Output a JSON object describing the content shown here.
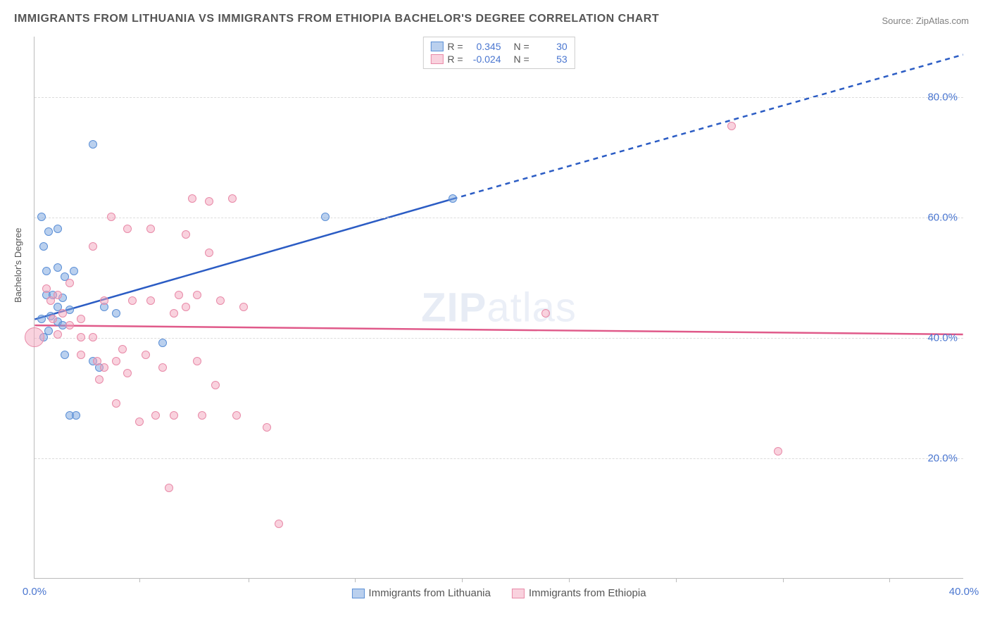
{
  "title": "IMMIGRANTS FROM LITHUANIA VS IMMIGRANTS FROM ETHIOPIA BACHELOR'S DEGREE CORRELATION CHART",
  "source": "Source: ZipAtlas.com",
  "ylabel": "Bachelor's Degree",
  "watermark_a": "ZIP",
  "watermark_b": "atlas",
  "chart": {
    "type": "scatter",
    "xlim": [
      0,
      40
    ],
    "ylim": [
      0,
      90
    ],
    "xticks": [
      {
        "v": 0,
        "label": "0.0%"
      },
      {
        "v": 40,
        "label": "40.0%"
      }
    ],
    "xmarks": [
      4.5,
      9.2,
      13.8,
      18.4,
      23.0,
      27.6,
      32.2,
      36.8
    ],
    "yticks": [
      {
        "v": 20,
        "label": "20.0%"
      },
      {
        "v": 40,
        "label": "40.0%"
      },
      {
        "v": 60,
        "label": "60.0%"
      },
      {
        "v": 80,
        "label": "80.0%"
      }
    ],
    "grid_color": "#dcdcdc",
    "background_color": "#ffffff",
    "series": [
      {
        "name": "Immigrants from Lithuania",
        "color_fill": "rgba(118,162,222,0.5)",
        "color_stroke": "#5b8fd6",
        "class": "blue",
        "R": "0.345",
        "N": "30",
        "trend": {
          "x1": 0,
          "y1": 43,
          "x2": 18,
          "y2": 63,
          "solid_to": 18,
          "x3": 40,
          "y3": 87,
          "stroke": "#2b5cc4",
          "width": 2.5
        },
        "points": [
          {
            "x": 0.3,
            "y": 60,
            "r": 6
          },
          {
            "x": 0.6,
            "y": 57.5,
            "r": 6
          },
          {
            "x": 1.0,
            "y": 58,
            "r": 6
          },
          {
            "x": 0.4,
            "y": 55,
            "r": 6
          },
          {
            "x": 0.5,
            "y": 51,
            "r": 6
          },
          {
            "x": 1.0,
            "y": 51.5,
            "r": 6
          },
          {
            "x": 1.3,
            "y": 50,
            "r": 6
          },
          {
            "x": 1.7,
            "y": 51,
            "r": 6
          },
          {
            "x": 0.5,
            "y": 47,
            "r": 6
          },
          {
            "x": 0.8,
            "y": 47,
            "r": 6
          },
          {
            "x": 1.0,
            "y": 45,
            "r": 6
          },
          {
            "x": 1.2,
            "y": 46.5,
            "r": 6
          },
          {
            "x": 1.5,
            "y": 44.5,
            "r": 6
          },
          {
            "x": 0.3,
            "y": 43,
            "r": 6
          },
          {
            "x": 0.7,
            "y": 43.5,
            "r": 6
          },
          {
            "x": 1.0,
            "y": 42.5,
            "r": 6
          },
          {
            "x": 1.2,
            "y": 42,
            "r": 6
          },
          {
            "x": 0.4,
            "y": 40,
            "r": 6
          },
          {
            "x": 0.6,
            "y": 41,
            "r": 6
          },
          {
            "x": 1.3,
            "y": 37,
            "r": 6
          },
          {
            "x": 2.5,
            "y": 36,
            "r": 6
          },
          {
            "x": 2.8,
            "y": 35,
            "r": 6
          },
          {
            "x": 1.5,
            "y": 27,
            "r": 6
          },
          {
            "x": 1.8,
            "y": 27,
            "r": 6
          },
          {
            "x": 2.5,
            "y": 72,
            "r": 6
          },
          {
            "x": 3.5,
            "y": 44,
            "r": 6
          },
          {
            "x": 5.5,
            "y": 39,
            "r": 6
          },
          {
            "x": 12.5,
            "y": 60,
            "r": 6
          },
          {
            "x": 18.0,
            "y": 63,
            "r": 6
          },
          {
            "x": 3.0,
            "y": 45,
            "r": 6
          }
        ]
      },
      {
        "name": "Immigrants from Ethiopia",
        "color_fill": "rgba(244,166,190,0.5)",
        "color_stroke": "#e88aa8",
        "class": "pink",
        "R": "-0.024",
        "N": "53",
        "trend": {
          "x1": 0,
          "y1": 42,
          "x2": 40,
          "y2": 40.5,
          "stroke": "#e05a8a",
          "width": 2.5
        },
        "points": [
          {
            "x": 0.0,
            "y": 40,
            "r": 14
          },
          {
            "x": 0.5,
            "y": 48,
            "r": 6
          },
          {
            "x": 0.7,
            "y": 46,
            "r": 6
          },
          {
            "x": 1.0,
            "y": 47,
            "r": 6
          },
          {
            "x": 1.2,
            "y": 44,
            "r": 6
          },
          {
            "x": 0.8,
            "y": 43,
            "r": 6
          },
          {
            "x": 1.0,
            "y": 40.5,
            "r": 6
          },
          {
            "x": 1.5,
            "y": 42,
            "r": 6
          },
          {
            "x": 1.5,
            "y": 49,
            "r": 6
          },
          {
            "x": 2.0,
            "y": 43,
            "r": 6
          },
          {
            "x": 2.0,
            "y": 40,
            "r": 6
          },
          {
            "x": 2.0,
            "y": 37,
            "r": 6
          },
          {
            "x": 2.5,
            "y": 40,
            "r": 6
          },
          {
            "x": 2.5,
            "y": 55,
            "r": 6
          },
          {
            "x": 2.7,
            "y": 36,
            "r": 6
          },
          {
            "x": 2.8,
            "y": 33,
            "r": 6
          },
          {
            "x": 3.0,
            "y": 46,
            "r": 6
          },
          {
            "x": 3.0,
            "y": 35,
            "r": 6
          },
          {
            "x": 3.3,
            "y": 60,
            "r": 6
          },
          {
            "x": 3.5,
            "y": 36,
            "r": 6
          },
          {
            "x": 3.5,
            "y": 29,
            "r": 6
          },
          {
            "x": 3.8,
            "y": 38,
            "r": 6
          },
          {
            "x": 4.0,
            "y": 34,
            "r": 6
          },
          {
            "x": 4.0,
            "y": 58,
            "r": 6
          },
          {
            "x": 4.2,
            "y": 46,
            "r": 6
          },
          {
            "x": 4.5,
            "y": 26,
            "r": 6
          },
          {
            "x": 4.8,
            "y": 37,
            "r": 6
          },
          {
            "x": 5.0,
            "y": 58,
            "r": 6
          },
          {
            "x": 5.0,
            "y": 46,
            "r": 6
          },
          {
            "x": 5.2,
            "y": 27,
            "r": 6
          },
          {
            "x": 5.5,
            "y": 35,
            "r": 6
          },
          {
            "x": 5.8,
            "y": 15,
            "r": 6
          },
          {
            "x": 6.0,
            "y": 44,
            "r": 6
          },
          {
            "x": 6.0,
            "y": 27,
            "r": 6
          },
          {
            "x": 6.5,
            "y": 57,
            "r": 6
          },
          {
            "x": 6.5,
            "y": 45,
            "r": 6
          },
          {
            "x": 6.8,
            "y": 63,
            "r": 6
          },
          {
            "x": 7.0,
            "y": 47,
            "r": 6
          },
          {
            "x": 7.0,
            "y": 36,
            "r": 6
          },
          {
            "x": 7.2,
            "y": 27,
            "r": 6
          },
          {
            "x": 7.5,
            "y": 62.5,
            "r": 6
          },
          {
            "x": 7.5,
            "y": 54,
            "r": 6
          },
          {
            "x": 7.8,
            "y": 32,
            "r": 6
          },
          {
            "x": 8.0,
            "y": 46,
            "r": 6
          },
          {
            "x": 8.5,
            "y": 63,
            "r": 6
          },
          {
            "x": 8.7,
            "y": 27,
            "r": 6
          },
          {
            "x": 9.0,
            "y": 45,
            "r": 6
          },
          {
            "x": 10.0,
            "y": 25,
            "r": 6
          },
          {
            "x": 10.5,
            "y": 9,
            "r": 6
          },
          {
            "x": 22.0,
            "y": 44,
            "r": 6
          },
          {
            "x": 30.0,
            "y": 75,
            "r": 6
          },
          {
            "x": 32.0,
            "y": 21,
            "r": 6
          },
          {
            "x": 6.2,
            "y": 47,
            "r": 6
          }
        ]
      }
    ],
    "legend_top": {
      "R_label": "R =",
      "N_label": "N ="
    },
    "legend_bottom": [
      {
        "class": "blue",
        "label": "Immigrants from Lithuania"
      },
      {
        "class": "pink",
        "label": "Immigrants from Ethiopia"
      }
    ]
  }
}
